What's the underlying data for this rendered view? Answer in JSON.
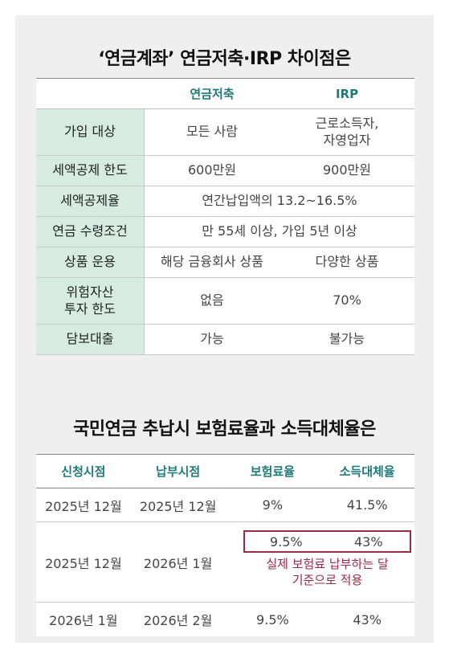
{
  "table1": {
    "title": "‘연금계좌’ 연금저축·IRP 차이점은",
    "columns": [
      "연금저축",
      "IRP"
    ],
    "rows": [
      {
        "label": "가입 대상",
        "values": [
          "모든 사람",
          "근로소득자,\n자영업자"
        ]
      },
      {
        "label": "세액공제 한도",
        "values": [
          "600만원",
          "900만원"
        ]
      },
      {
        "label": "세액공제율",
        "merged": "연간납입액의 13.2~16.5%"
      },
      {
        "label": "연금 수령조건",
        "merged": "만 55세 이상, 가입 5년 이상"
      },
      {
        "label": "상품 운용",
        "values": [
          "해당 금융회사 상품",
          "다양한 상품"
        ]
      },
      {
        "label": "위험자산\n투자 한도",
        "values": [
          "없음",
          "70%"
        ]
      },
      {
        "label": "담보대출",
        "values": [
          "가능",
          "불가능"
        ]
      }
    ]
  },
  "table2": {
    "title": "국민연금 추납시 보험료율과 소득대체율은",
    "columns": [
      "신청시점",
      "납부시점",
      "보험료율",
      "소득대체율"
    ],
    "rows": [
      {
        "cells": [
          "2025년 12월",
          "2025년 12월",
          "9%",
          "41.5%"
        ]
      },
      {
        "cells": [
          "2025년 12월",
          "2026년 1월",
          "9.5%",
          "43%"
        ],
        "note": "실제 보험료 납부하는 달\n기준으로 적용"
      },
      {
        "cells": [
          "2026년 1월",
          "2026년 2월",
          "9.5%",
          "43%"
        ]
      }
    ]
  },
  "colors": {
    "card_bg": "#efefef",
    "header_text": "#1d7a79",
    "label_bg": "#d6ece1",
    "highlight": "#9b2a45"
  }
}
